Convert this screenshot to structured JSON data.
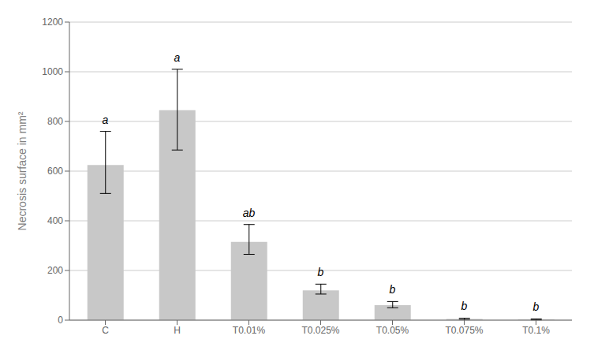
{
  "chart_data": {
    "type": "bar",
    "ylabel": "Necrosis surface in mm²",
    "categories": [
      "C",
      "H",
      "T0.01%",
      "T0.025%",
      "T0.05%",
      "T0.075%",
      "T0.1%"
    ],
    "values": [
      625,
      845,
      315,
      120,
      60,
      5,
      3
    ],
    "yerr_lower": [
      115,
      160,
      50,
      15,
      10,
      3,
      2
    ],
    "yerr_upper": [
      135,
      165,
      70,
      25,
      15,
      3,
      2
    ],
    "labels": [
      "a",
      "a",
      "ab",
      "b",
      "b",
      "b",
      "b"
    ],
    "color": "#c8c8c8",
    "ylim": [
      0,
      1200
    ],
    "yticks": [
      0,
      200,
      400,
      600,
      800,
      1000,
      1200
    ],
    "grid": true
  }
}
